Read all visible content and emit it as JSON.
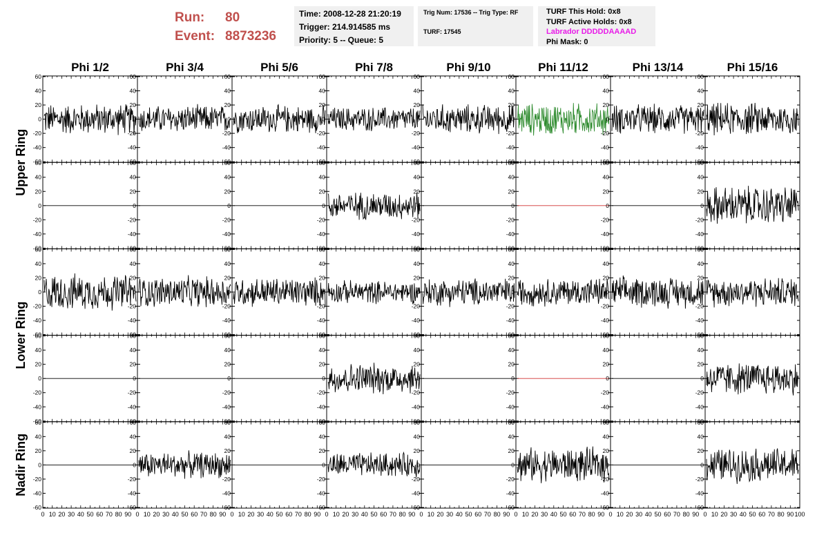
{
  "header": {
    "run_label": "Run:",
    "run_value": "80",
    "event_label": "Event:",
    "event_value": "8873236",
    "time": "Time: 2008-12-28 21:20:19",
    "trigger": "Trigger: 214.914585 ms",
    "priority_queue": "Priority: 5 -- Queue: 5",
    "trig_num_type": "Trig Num: 17536 -- Trig Type: RF",
    "turf": "TURF: 17545",
    "turf_this_hold": "TURF This Hold: 0x8",
    "turf_active_holds": "TURF Active Holds: 0x8",
    "labrador": "Labrador DDDDDAAAAD",
    "phi_mask": "Phi Mask: 0"
  },
  "colors": {
    "header_red": "#c0504d",
    "labrador_magenta": "#e81be8",
    "highlight_trace": "#2e8b2e",
    "flat_red_trace": "#d03030",
    "trace": "#000000"
  },
  "chart_data": {
    "type": "line",
    "columns": [
      "Phi 1/2",
      "Phi 3/4",
      "Phi 5/6",
      "Phi 7/8",
      "Phi 9/10",
      "Phi 11/12",
      "Phi 13/14",
      "Phi 15/16"
    ],
    "ring_labels": [
      "Upper Ring",
      "Lower Ring",
      "Nadir Ring"
    ],
    "ylim": [
      -60,
      60
    ],
    "xlim": [
      0,
      100
    ],
    "y_ticks": [
      "60",
      "40",
      "20",
      "0",
      "-20",
      "-40",
      "-60"
    ],
    "x_ticks": [
      "0",
      "10",
      "20",
      "30",
      "40",
      "50",
      "60",
      "70",
      "80",
      "90",
      "100"
    ],
    "panels": [
      [
        {
          "amp": 19,
          "color": "trace"
        },
        {
          "amp": 17,
          "color": "trace"
        },
        {
          "amp": 17,
          "color": "trace"
        },
        {
          "amp": 15,
          "color": "trace"
        },
        {
          "amp": 18,
          "color": "trace"
        },
        {
          "amp": 20,
          "color": "highlight_trace"
        },
        {
          "amp": 18,
          "color": "trace"
        },
        {
          "amp": 20,
          "color": "trace"
        }
      ],
      [
        {
          "amp": 0,
          "color": "trace"
        },
        {
          "amp": 0,
          "color": "trace"
        },
        {
          "amp": 0,
          "color": "trace"
        },
        {
          "amp": 17,
          "color": "trace"
        },
        {
          "amp": 0,
          "color": "trace"
        },
        {
          "amp": 0,
          "color": "flat_red_trace"
        },
        {
          "amp": 0,
          "color": "trace"
        },
        {
          "amp": 24,
          "color": "trace"
        }
      ],
      [
        {
          "amp": 22,
          "color": "trace"
        },
        {
          "amp": 19,
          "color": "trace"
        },
        {
          "amp": 18,
          "color": "trace"
        },
        {
          "amp": 14,
          "color": "trace"
        },
        {
          "amp": 17,
          "color": "trace"
        },
        {
          "amp": 17,
          "color": "trace"
        },
        {
          "amp": 19,
          "color": "trace"
        },
        {
          "amp": 18,
          "color": "trace"
        }
      ],
      [
        {
          "amp": 0,
          "color": "trace"
        },
        {
          "amp": 0,
          "color": "trace"
        },
        {
          "amp": 0,
          "color": "trace"
        },
        {
          "amp": 19,
          "color": "trace"
        },
        {
          "amp": 0,
          "color": "trace"
        },
        {
          "amp": 0,
          "color": "flat_red_trace"
        },
        {
          "amp": 0,
          "color": "trace"
        },
        {
          "amp": 20,
          "color": "trace"
        }
      ],
      [
        {
          "amp": 0,
          "color": "trace"
        },
        {
          "amp": 16,
          "color": "trace"
        },
        {
          "amp": 0,
          "color": "trace"
        },
        {
          "amp": 15,
          "color": "trace"
        },
        {
          "amp": 0,
          "color": "trace"
        },
        {
          "amp": 21,
          "color": "trace"
        },
        {
          "amp": 0,
          "color": "trace"
        },
        {
          "amp": 21,
          "color": "trace"
        }
      ]
    ]
  }
}
